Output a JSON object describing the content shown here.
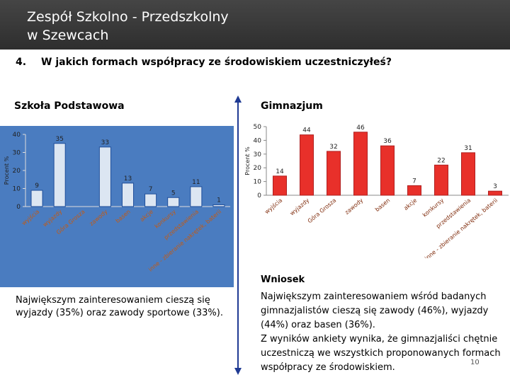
{
  "header": {
    "title_lines": [
      "Zespół Szkolno - Przedszkolny",
      "w Szewcach"
    ]
  },
  "question": {
    "number": "4.",
    "text": "W jakich formach współpracy ze środowiskiem uczestniczyłeś?"
  },
  "chart_data": [
    {
      "type": "bar",
      "title": "Szkoła  Podstawowa",
      "y_label": "Procent %",
      "categories": [
        "wyjścia",
        "wyjazdy",
        "Góra Grosza",
        "zawody",
        "basen",
        "akcje",
        "konkursy",
        "przedstawienia",
        "inne - zbieranie nakrętek, baterii"
      ],
      "values": [
        9,
        35,
        null,
        33,
        13,
        7,
        5,
        11,
        1
      ],
      "color": "#dce6f2",
      "ylim": [
        0,
        40
      ],
      "yticks": [
        0,
        10,
        20,
        30,
        40
      ]
    },
    {
      "type": "bar",
      "title": "Gimnazjum",
      "y_label": "Procent %",
      "categories": [
        "wyjścia",
        "wyjazdy",
        "Góra Grosza",
        "zawody",
        "basen",
        "akcje",
        "konkursy",
        "przedstawienia",
        "inne - zbieranie nakrętek, baterii"
      ],
      "values": [
        14,
        44,
        32,
        46,
        36,
        7,
        22,
        31,
        3
      ],
      "color": "#e8302a",
      "ylim": [
        0,
        50
      ],
      "yticks": [
        0,
        10,
        20,
        30,
        40,
        50
      ]
    }
  ],
  "left_conclusion": "Największym zainteresowaniem cieszą się wyjazdy (35%) oraz zawody sportowe (33%).",
  "right_conclusion": {
    "heading": "Wniosek",
    "paragraphs": [
      "Największym zainteresowaniem wśród  badanych gimnazjalistów cieszą się zawody (46%), wyjazdy (44%) oraz basen (36%).",
      "Z wyników ankiety wynika, że gimnazjaliści chętnie uczestniczą we wszystkich proponowanych formach współpracy ze środowiskiem."
    ]
  },
  "page_number": "10"
}
